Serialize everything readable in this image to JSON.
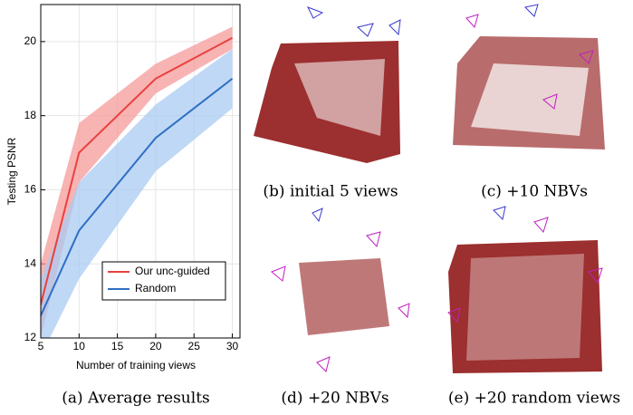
{
  "chart_data": {
    "type": "line",
    "y_label": "Testing PSNR",
    "x_label": "Number of training views",
    "x": [
      5,
      10,
      20,
      30
    ],
    "series": [
      {
        "name": "Our unc-guided",
        "color": "#e8413f",
        "band_color": "#f59a9a",
        "values": [
          12.9,
          17.0,
          19.0,
          20.1
        ],
        "lower": [
          12.0,
          16.2,
          18.6,
          19.8
        ],
        "upper": [
          14.0,
          17.8,
          19.4,
          20.4
        ]
      },
      {
        "name": "Random",
        "color": "#2f6fc4",
        "band_color": "#a9cbf2",
        "values": [
          12.6,
          14.9,
          17.4,
          19.0
        ],
        "lower": [
          11.5,
          13.6,
          16.5,
          18.2
        ],
        "upper": [
          13.6,
          16.2,
          18.3,
          19.8
        ]
      }
    ],
    "xlim": [
      5,
      31
    ],
    "ylim": [
      12,
      21
    ],
    "xticks": [
      5,
      10,
      15,
      20,
      25,
      30
    ],
    "yticks": [
      12,
      14,
      16,
      18,
      20
    ],
    "grid": true,
    "legend": "lower right"
  },
  "captions": [
    "(a) Average results",
    "(b) initial 5 views",
    "(c) +10 NBVs",
    "(d) +20 NBVs",
    "(e) +20 random views"
  ]
}
